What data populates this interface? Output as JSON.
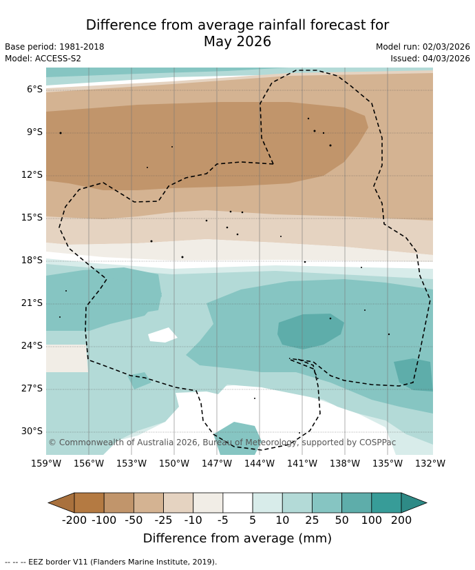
{
  "title": {
    "line1": "Difference from average rainfall forecast for",
    "line2": "May 2026"
  },
  "meta": {
    "base_period": "Base period: 1981-2018",
    "model": "Model: ACCESS-S2",
    "model_run": "Model run: 02/03/2026",
    "issued": "Issued: 04/03/2026"
  },
  "map": {
    "lat_labels": [
      "6°S",
      "9°S",
      "12°S",
      "15°S",
      "18°S",
      "21°S",
      "24°S",
      "27°S",
      "30°S"
    ],
    "lon_labels": [
      "159°W",
      "156°W",
      "153°W",
      "150°W",
      "147°W",
      "144°W",
      "141°W",
      "138°W",
      "135°W",
      "132°W"
    ],
    "copyright": "© Commonwealth of Australia 2026, Bureau of Meteorology, supported by COSPPac"
  },
  "colorbar": {
    "title": "Difference from average (mm)",
    "tick_labels": [
      "-200",
      "-100",
      "-50",
      "-25",
      "-10",
      "-5",
      "5",
      "10",
      "25",
      "50",
      "100",
      "200"
    ],
    "colors": [
      "#a9713d",
      "#b47a42",
      "#c1956b",
      "#d4b392",
      "#e5d3c1",
      "#f1ede6",
      "#ffffff",
      "#d8ecea",
      "#b3dad7",
      "#86c5c2",
      "#5eadaa",
      "#379c98",
      "#2e8a86"
    ]
  },
  "legend_note": "--  --  -- EEZ border V11 (Flanders Marine Institute, 2019)."
}
